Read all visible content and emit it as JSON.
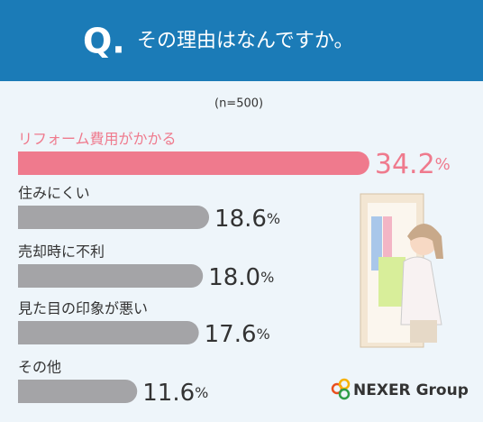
{
  "chart_data": {
    "type": "bar",
    "title_prefix": "Q.",
    "title": "その理由はなんですか。",
    "note": "(n=500)",
    "categories": [
      "リフォーム費用がかかる",
      "住みにくい",
      "売却時に不利",
      "見た目の印象が悪い",
      "その他"
    ],
    "values": [
      34.2,
      18.6,
      18.0,
      17.6,
      11.6
    ],
    "value_labels": [
      "34.2",
      "18.6",
      "18.0",
      "17.6",
      "11.6"
    ],
    "unit": "%",
    "colors": [
      "#ef7a8d",
      "#a4a4a7",
      "#a4a4a7",
      "#a4a4a7",
      "#a4a4a7"
    ],
    "brand": "NEXER Group"
  }
}
